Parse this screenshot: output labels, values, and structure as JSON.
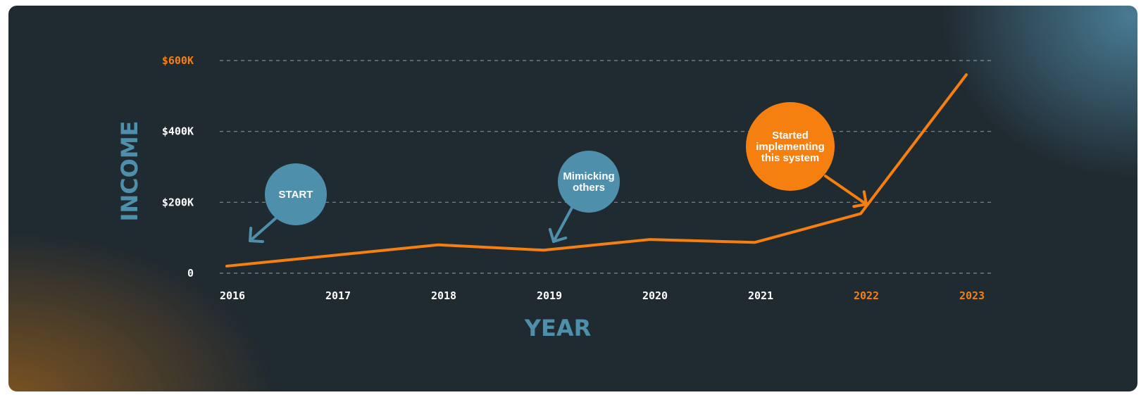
{
  "chart_data": {
    "type": "line",
    "x": [
      "2016",
      "2017",
      "2018",
      "2019",
      "2020",
      "2021",
      "2022",
      "2023"
    ],
    "series": [
      {
        "values": [
          20000,
          50000,
          80000,
          65000,
          95000,
          87000,
          168000,
          560000
        ]
      }
    ],
    "ylim": [
      0,
      600000
    ],
    "yticks": [
      {
        "value": 0,
        "label": "0"
      },
      {
        "value": 200000,
        "label": "$200K"
      },
      {
        "value": 400000,
        "label": "$400K"
      },
      {
        "value": 600000,
        "label": "$600K"
      }
    ],
    "xlabel": "YEAR",
    "ylabel": "INCOME",
    "grid": "horizontal dashed",
    "highlight_color": "#f57f0f",
    "accent_color": "#4e8fab",
    "annotations": [
      {
        "id": "start",
        "text": [
          "START"
        ],
        "target_year": "2016",
        "color": "#4e8fab"
      },
      {
        "id": "mimicking",
        "text": [
          "Mimicking",
          "others"
        ],
        "target_year": "2019",
        "color": "#4e8fab"
      },
      {
        "id": "system",
        "text": [
          "Started",
          "implementing",
          "this system"
        ],
        "target_year": "2022",
        "color": "#f57f0f"
      }
    ],
    "highlighted_x": [
      "2022",
      "2023"
    ],
    "highlighted_y": [
      "$600K"
    ]
  }
}
